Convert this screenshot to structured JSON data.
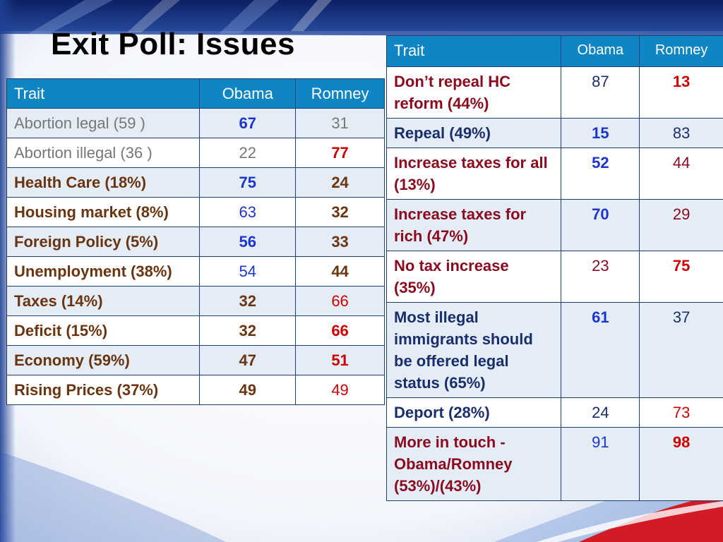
{
  "title": "Exit Poll: Issues",
  "colors": {
    "header_bg": "#0f86c3",
    "obama_blue": "#1b35d1",
    "romney_red": "#d10000"
  },
  "left_table": {
    "headers": [
      "Trait",
      "Obama",
      "Romney"
    ],
    "rows": [
      {
        "trait": "Abortion legal (59 )",
        "obama": "67",
        "romney": "31"
      },
      {
        "trait": "Abortion illegal (36 )",
        "obama": "22",
        "romney": "77"
      },
      {
        "trait": "Health Care (18%)",
        "obama": "75",
        "romney": "24"
      },
      {
        "trait": "Housing market (8%)",
        "obama": "63",
        "romney": "32"
      },
      {
        "trait": "Foreign Policy (5%)",
        "obama": "56",
        "romney": "33"
      },
      {
        "trait": "Unemployment (38%)",
        "obama": "54",
        "romney": "44"
      },
      {
        "trait": "Taxes   (14%)",
        "obama": "32",
        "romney": "66"
      },
      {
        "trait": "Deficit (15%)",
        "obama": "32",
        "romney": "66"
      },
      {
        "trait": "Economy (59%)",
        "obama": "47",
        "romney": "51"
      },
      {
        "trait": "Rising Prices  (37%)",
        "obama": "49",
        "romney": "49"
      }
    ]
  },
  "right_table": {
    "headers": [
      "Trait",
      "Obama",
      "Romney"
    ],
    "rows": [
      {
        "trait": "Don’t repeal HC reform (44%)",
        "obama": "87",
        "romney": "13"
      },
      {
        "trait": "Repeal (49%)",
        "obama": "15",
        "romney": "83"
      },
      {
        "trait": "Increase taxes for all  (13%)",
        "obama": "52",
        "romney": "44"
      },
      {
        "trait": "Increase taxes for rich  (47%)",
        "obama": "70",
        "romney": "29"
      },
      {
        "trait": "No tax increase (35%)",
        "obama": "23",
        "romney": "75"
      },
      {
        "trait": "Most illegal immigrants should be offered legal status  (65%)",
        "obama": "61",
        "romney": "37"
      },
      {
        "trait": "Deport  (28%)",
        "obama": "24",
        "romney": "73"
      },
      {
        "trait": "More in touch - Obama/Romney (53%)/(43%)",
        "obama": "91",
        "romney": "98"
      }
    ]
  }
}
